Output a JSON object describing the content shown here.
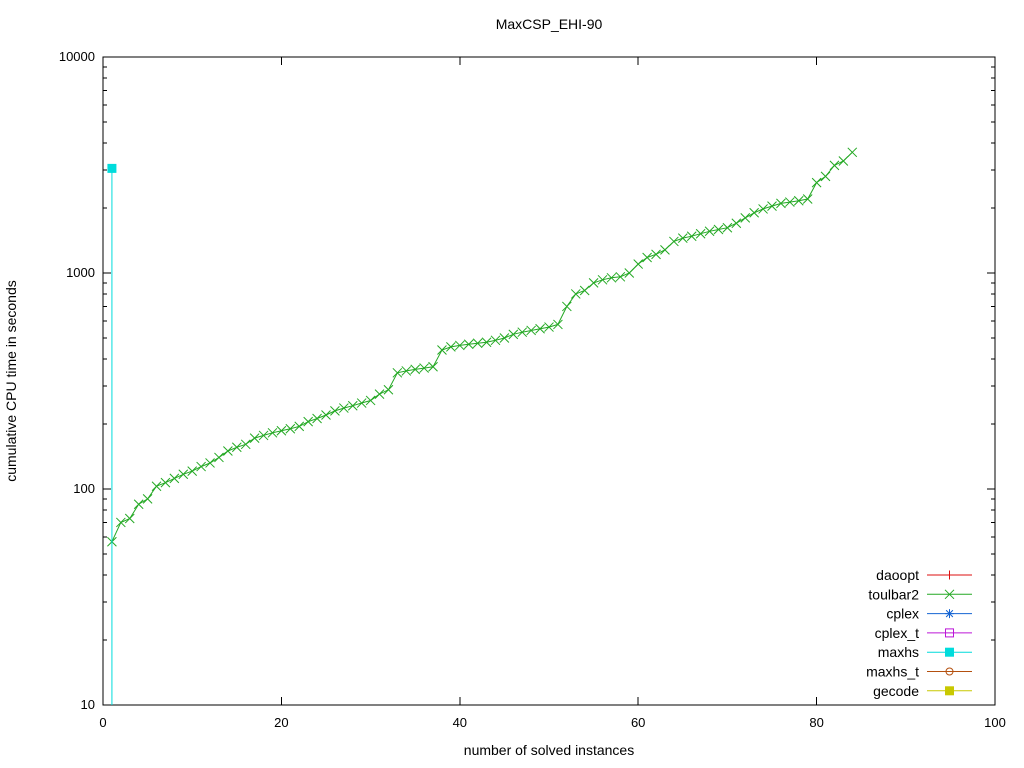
{
  "chart_data": {
    "type": "line",
    "title": "MaxCSP_EHI-90",
    "xlabel": "number of solved instances",
    "ylabel": "cumulative CPU time in seconds",
    "xlim": [
      0,
      100
    ],
    "ylim": [
      10,
      10000
    ],
    "yscale": "log",
    "x_ticks": [
      0,
      20,
      40,
      60,
      80,
      100
    ],
    "y_ticks": [
      10,
      100,
      1000,
      10000
    ],
    "grid": false,
    "legend_position": "bottom-right-inside",
    "series": [
      {
        "name": "daoopt",
        "color": "#dd0f0f",
        "marker": "plus",
        "points": []
      },
      {
        "name": "toulbar2",
        "color": "#23a823",
        "marker": "cross",
        "points": [
          [
            1,
            57
          ],
          [
            2,
            70
          ],
          [
            3,
            73
          ],
          [
            4,
            85
          ],
          [
            5,
            90
          ],
          [
            6,
            103
          ],
          [
            7,
            107
          ],
          [
            8,
            112
          ],
          [
            9,
            117
          ],
          [
            10,
            121
          ],
          [
            11,
            127
          ],
          [
            12,
            132
          ],
          [
            13,
            140
          ],
          [
            14,
            150
          ],
          [
            15,
            156
          ],
          [
            16,
            161
          ],
          [
            17,
            172
          ],
          [
            18,
            177
          ],
          [
            19,
            182
          ],
          [
            20,
            186
          ],
          [
            21,
            190
          ],
          [
            22,
            195
          ],
          [
            23,
            205
          ],
          [
            24,
            212
          ],
          [
            25,
            220
          ],
          [
            26,
            230
          ],
          [
            27,
            237
          ],
          [
            28,
            243
          ],
          [
            29,
            250
          ],
          [
            30,
            257
          ],
          [
            31,
            275
          ],
          [
            32,
            288
          ],
          [
            33,
            345
          ],
          [
            34,
            352
          ],
          [
            35,
            358
          ],
          [
            36,
            363
          ],
          [
            37,
            368
          ],
          [
            38,
            440
          ],
          [
            39,
            455
          ],
          [
            40,
            462
          ],
          [
            41,
            468
          ],
          [
            42,
            473
          ],
          [
            43,
            478
          ],
          [
            44,
            488
          ],
          [
            45,
            500
          ],
          [
            46,
            520
          ],
          [
            47,
            532
          ],
          [
            48,
            542
          ],
          [
            49,
            552
          ],
          [
            50,
            562
          ],
          [
            51,
            578
          ],
          [
            52,
            700
          ],
          [
            53,
            800
          ],
          [
            54,
            830
          ],
          [
            55,
            900
          ],
          [
            56,
            930
          ],
          [
            57,
            950
          ],
          [
            58,
            960
          ],
          [
            59,
            1000
          ],
          [
            60,
            1100
          ],
          [
            61,
            1180
          ],
          [
            62,
            1220
          ],
          [
            63,
            1280
          ],
          [
            64,
            1400
          ],
          [
            65,
            1450
          ],
          [
            66,
            1480
          ],
          [
            67,
            1520
          ],
          [
            68,
            1560
          ],
          [
            69,
            1590
          ],
          [
            70,
            1620
          ],
          [
            71,
            1700
          ],
          [
            72,
            1800
          ],
          [
            73,
            1900
          ],
          [
            74,
            1980
          ],
          [
            75,
            2040
          ],
          [
            76,
            2100
          ],
          [
            77,
            2130
          ],
          [
            78,
            2160
          ],
          [
            79,
            2200
          ],
          [
            80,
            2620
          ],
          [
            81,
            2800
          ],
          [
            82,
            3150
          ],
          [
            83,
            3300
          ],
          [
            84,
            3620
          ]
        ]
      },
      {
        "name": "cplex",
        "color": "#1464d2",
        "marker": "asterisk",
        "points": []
      },
      {
        "name": "cplex_t",
        "color": "#bc16d8",
        "marker": "open-square",
        "points": []
      },
      {
        "name": "maxhs",
        "color": "#00dcdc",
        "marker": "filled-square",
        "points": [
          [
            1,
            3050
          ]
        ],
        "drop_line_to_axis": true
      },
      {
        "name": "maxhs_t",
        "color": "#b4500f",
        "marker": "open-circle",
        "points": []
      },
      {
        "name": "gecode",
        "color": "#c8c800",
        "marker": "filled-square",
        "points": []
      }
    ]
  }
}
